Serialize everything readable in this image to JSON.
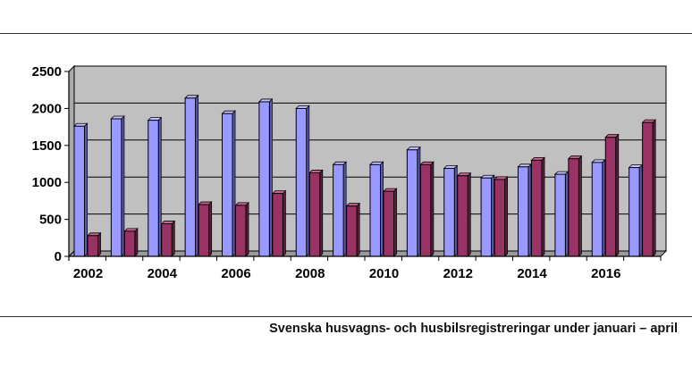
{
  "caption": "Svenska husvagns- och husbilsregistreringar under januari – april",
  "chart_data": {
    "type": "bar",
    "title": "",
    "xlabel": "",
    "ylabel": "",
    "ylim": [
      0,
      2500
    ],
    "yticks": [
      0,
      500,
      1000,
      1500,
      2000,
      2500
    ],
    "grid": true,
    "legend": "none",
    "categories": [
      "2002",
      "2003",
      "2004",
      "2005",
      "2006",
      "2007",
      "2008",
      "2009",
      "2010",
      "2011",
      "2012",
      "2013",
      "2014",
      "2015",
      "2016",
      "2017"
    ],
    "xtick_labels": [
      "2002",
      "",
      "2004",
      "",
      "2006",
      "",
      "2008",
      "",
      "2010",
      "",
      "2012",
      "",
      "2014",
      "",
      "2016",
      ""
    ],
    "series": [
      {
        "values": [
          1760,
          1860,
          1840,
          2140,
          1930,
          2090,
          2000,
          1240,
          1240,
          1440,
          1190,
          1060,
          1210,
          1110,
          1270,
          1200
        ]
      },
      {
        "values": [
          280,
          340,
          440,
          700,
          690,
          850,
          1130,
          680,
          880,
          1240,
          1090,
          1040,
          1300,
          1320,
          1610,
          1810
        ]
      }
    ],
    "colors": {
      "plot_bg": "#c0c0c0",
      "series_front": [
        "#9999ff",
        "#993366"
      ],
      "series_top": [
        "#c4c4ff",
        "#c5668f"
      ],
      "series_side": [
        "#5c5cb8",
        "#5e1f3f"
      ]
    }
  }
}
